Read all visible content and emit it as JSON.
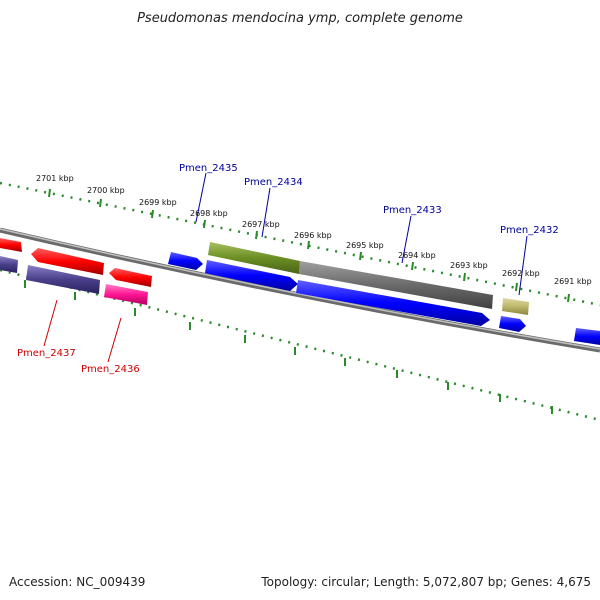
{
  "title": "Pseudomonas mendocina ymp, complete genome",
  "accession": "Accession: NC_009439",
  "summary": "Topology: circular; Length: 5,072,807 bp; Genes: 4,675",
  "kbp_labels": [
    "2701 kbp",
    "2700 kbp",
    "2699 kbp",
    "2698 kbp",
    "2697 kbp",
    "2696 kbp",
    "2695 kbp",
    "2694 kbp",
    "2693 kbp",
    "2692 kbp",
    "2691 kbp"
  ],
  "gene_labels": [
    {
      "text": "Pmen_2435",
      "strand": "forward"
    },
    {
      "text": "Pmen_2434",
      "strand": "forward"
    },
    {
      "text": "Pmen_2433",
      "strand": "forward"
    },
    {
      "text": "Pmen_2432",
      "strand": "forward"
    },
    {
      "text": "Pmen_2437",
      "strand": "reverse"
    },
    {
      "text": "Pmen_2436",
      "strand": "reverse"
    }
  ],
  "colors": {
    "forward_label": "#00009c",
    "reverse_label": "#cc0000",
    "tick": "#2a8a2a",
    "backbone": "#8a8a8a"
  }
}
